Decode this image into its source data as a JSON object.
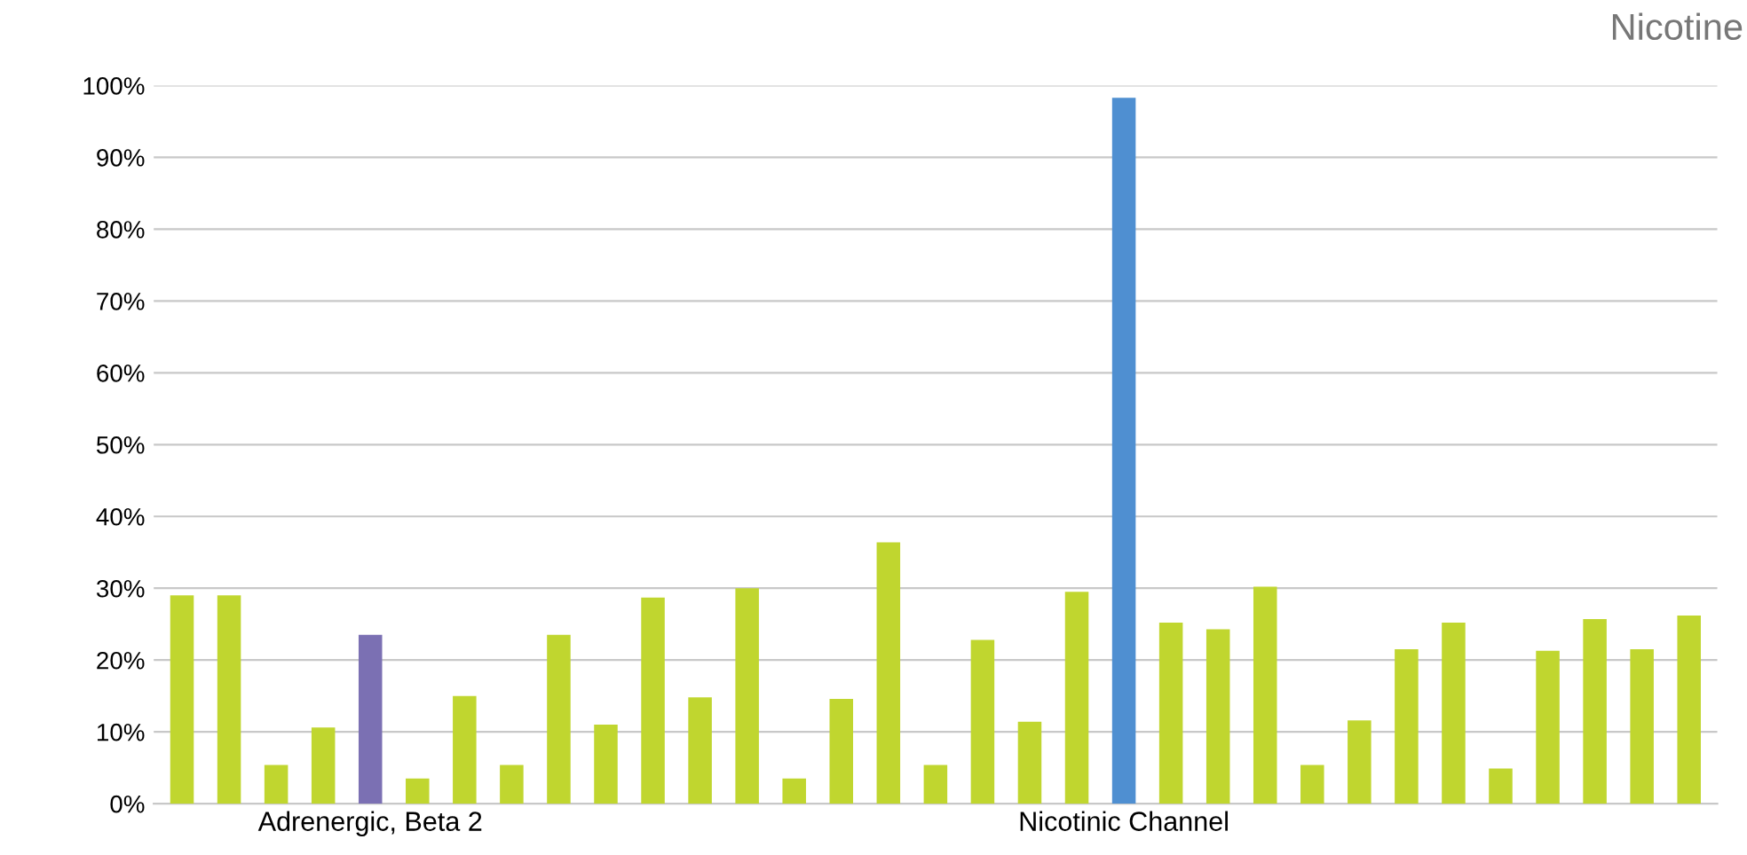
{
  "chart_data": {
    "type": "bar",
    "title": "Nicotine",
    "categories": [
      null,
      null,
      null,
      null,
      "Adrenergic, Beta 2",
      null,
      null,
      null,
      null,
      null,
      null,
      null,
      null,
      null,
      null,
      null,
      null,
      null,
      null,
      null,
      "Nicotinic Channel",
      null,
      null,
      null,
      null,
      null,
      null,
      null,
      null,
      null,
      null,
      null,
      null
    ],
    "values": [
      29,
      29,
      5.4,
      10.6,
      23.5,
      3.5,
      15,
      5.4,
      23.5,
      11,
      28.7,
      14.8,
      30,
      3.5,
      14.6,
      36.4,
      5.4,
      22.8,
      11.4,
      29.5,
      98.3,
      25.2,
      24.3,
      30.2,
      5.4,
      11.6,
      21.5,
      25.2,
      4.9,
      21.3,
      25.7,
      21.5,
      26.2
    ],
    "colors": [
      "#c0d62f",
      "#c0d62f",
      "#c0d62f",
      "#c0d62f",
      "#7b70b3",
      "#c0d62f",
      "#c0d62f",
      "#c0d62f",
      "#c0d62f",
      "#c0d62f",
      "#c0d62f",
      "#c0d62f",
      "#c0d62f",
      "#c0d62f",
      "#c0d62f",
      "#c0d62f",
      "#c0d62f",
      "#c0d62f",
      "#c0d62f",
      "#c0d62f",
      "#4f8fd1",
      "#c0d62f",
      "#c0d62f",
      "#c0d62f",
      "#c0d62f",
      "#c0d62f",
      "#c0d62f",
      "#c0d62f",
      "#c0d62f",
      "#c0d62f",
      "#c0d62f",
      "#c0d62f",
      "#c0d62f"
    ],
    "ylim": [
      0,
      100
    ],
    "yticks": [
      {
        "value": 0,
        "label": "0%"
      },
      {
        "value": 10,
        "label": "10%"
      },
      {
        "value": 20,
        "label": "20%"
      },
      {
        "value": 30,
        "label": "30%"
      },
      {
        "value": 40,
        "label": "40%"
      },
      {
        "value": 50,
        "label": "50%"
      },
      {
        "value": 60,
        "label": "60%"
      },
      {
        "value": 70,
        "label": "70%"
      },
      {
        "value": 80,
        "label": "80%"
      },
      {
        "value": 90,
        "label": "90%"
      },
      {
        "value": 100,
        "label": "100%"
      }
    ],
    "grid": "y"
  }
}
